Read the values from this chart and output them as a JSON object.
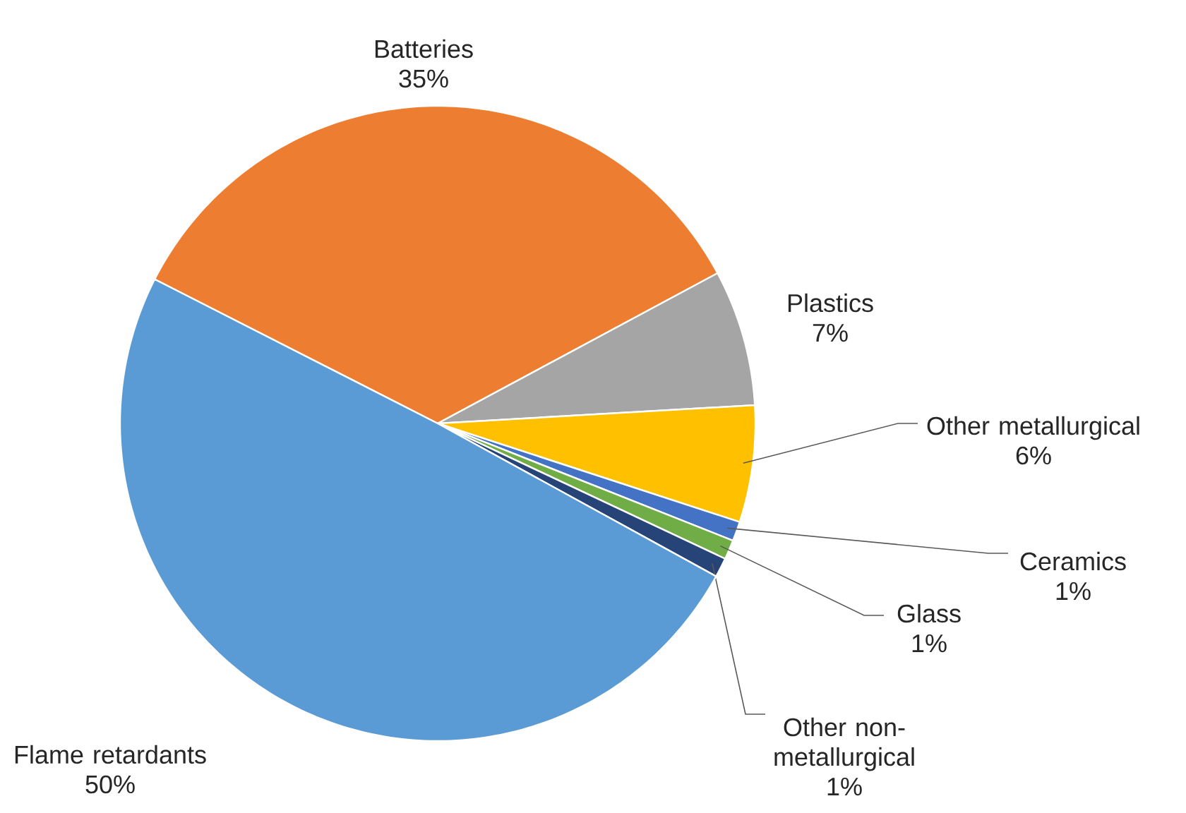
{
  "chart_data": {
    "type": "pie",
    "categories": [
      "Batteries",
      "Plastics",
      "Other metallurgical",
      "Ceramics",
      "Glass",
      "Other non-metallurgical",
      "Flame retardants"
    ],
    "values": [
      35,
      7,
      6,
      1,
      1,
      1,
      50
    ],
    "value_labels": [
      "35%",
      "7%",
      "6%",
      "1%",
      "1%",
      "1%",
      "50%"
    ],
    "colors": [
      "#ed7d31",
      "#a5a5a5",
      "#ffc000",
      "#4472c4",
      "#70ad47",
      "#264478",
      "#5b9bd5"
    ]
  }
}
